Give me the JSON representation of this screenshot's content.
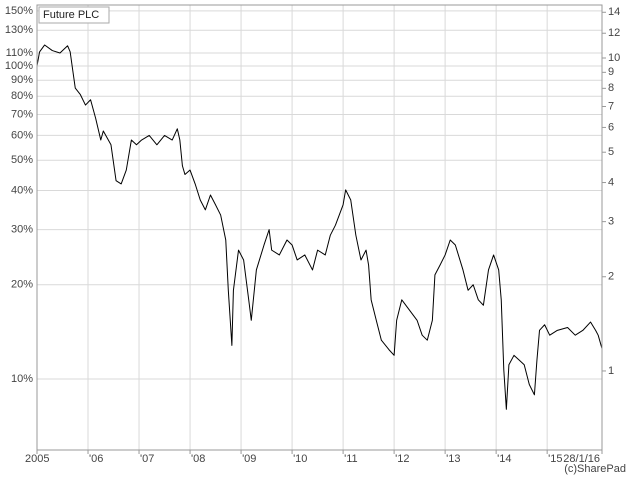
{
  "chart_data": {
    "type": "line",
    "title": "Future PLC",
    "watermark": "(c)SharePad",
    "log_scale": true,
    "grid": true,
    "x": [
      2005.0,
      2005.05,
      2005.15,
      2005.3,
      2005.45,
      2005.6,
      2005.65,
      2005.7,
      2005.75,
      2005.85,
      2005.95,
      2006.05,
      2006.15,
      2006.25,
      2006.3,
      2006.45,
      2006.55,
      2006.65,
      2006.75,
      2006.85,
      2006.95,
      2007.05,
      2007.2,
      2007.35,
      2007.5,
      2007.65,
      2007.75,
      2007.8,
      2007.85,
      2007.9,
      2008.0,
      2008.1,
      2008.2,
      2008.3,
      2008.4,
      2008.5,
      2008.6,
      2008.7,
      2008.75,
      2008.82,
      2008.85,
      2008.95,
      2009.05,
      2009.15,
      2009.2,
      2009.3,
      2009.45,
      2009.55,
      2009.6,
      2009.75,
      2009.9,
      2010.0,
      2010.1,
      2010.25,
      2010.4,
      2010.5,
      2010.65,
      2010.75,
      2010.85,
      2011.0,
      2011.05,
      2011.15,
      2011.25,
      2011.35,
      2011.45,
      2011.5,
      2011.55,
      2011.65,
      2011.75,
      2011.9,
      2012.0,
      2012.05,
      2012.15,
      2012.3,
      2012.45,
      2012.55,
      2012.65,
      2012.75,
      2012.8,
      2012.9,
      2013.0,
      2013.1,
      2013.2,
      2013.35,
      2013.45,
      2013.55,
      2013.65,
      2013.75,
      2013.85,
      2013.95,
      2014.05,
      2014.1,
      2014.15,
      2014.2,
      2014.25,
      2014.35,
      2014.45,
      2014.55,
      2014.65,
      2014.75,
      2014.8,
      2014.85,
      2014.95,
      2015.05,
      2015.2,
      2015.4,
      2015.55,
      2015.7,
      2015.85,
      2015.95,
      2016.0,
      2016.075
    ],
    "series": [
      {
        "name": "Future PLC",
        "color": "#000000",
        "values": [
          100,
          110.9,
          116.7,
          112,
          110,
          116,
          111,
          97,
          85,
          81,
          75,
          78,
          68,
          58,
          62,
          56,
          43,
          42,
          46.5,
          58,
          56,
          58,
          60,
          56,
          60,
          58,
          63,
          58,
          48,
          45,
          46.5,
          42,
          37.3,
          34.7,
          38.7,
          36,
          33.4,
          27.8,
          19.2,
          12.8,
          19.2,
          25.8,
          24,
          17.9,
          15.4,
          22.3,
          26.8,
          30,
          25.8,
          24.9,
          27.8,
          26.8,
          24,
          24.9,
          22.3,
          25.8,
          24.9,
          28.8,
          31,
          36,
          40.2,
          37.3,
          28.8,
          24,
          25.8,
          23.1,
          17.9,
          15.4,
          13.3,
          12.4,
          11.9,
          15.4,
          17.9,
          16.6,
          15.4,
          13.8,
          13.3,
          15.4,
          21.5,
          23.1,
          24.9,
          27.8,
          26.8,
          22.3,
          19.2,
          20,
          17.9,
          17.2,
          22.3,
          24.9,
          22.3,
          17.9,
          10.7,
          8,
          11.1,
          11.9,
          11.5,
          11.1,
          9.6,
          8.9,
          11.5,
          14.3,
          14.9,
          13.8,
          14.3,
          14.6,
          13.8,
          14.3,
          15.2,
          14.3,
          13.8,
          12.5
        ]
      }
    ],
    "xlim": [
      2005,
      2016.075
    ],
    "xticks": [
      {
        "value": 2005,
        "label": "2005"
      },
      {
        "value": 2006,
        "label": "'06"
      },
      {
        "value": 2007,
        "label": "'07"
      },
      {
        "value": 2008,
        "label": "'08"
      },
      {
        "value": 2009,
        "label": "'09"
      },
      {
        "value": 2010,
        "label": "'10"
      },
      {
        "value": 2011,
        "label": "'11"
      },
      {
        "value": 2012,
        "label": "'12"
      },
      {
        "value": 2013,
        "label": "'13"
      },
      {
        "value": 2014,
        "label": "'14"
      },
      {
        "value": 2015,
        "label": "'15"
      },
      {
        "value": 2016.075,
        "label": "28/1/16"
      }
    ],
    "ylim": [
      5.93,
      156.6
    ],
    "yticks": [
      {
        "value": 10,
        "label": "10%"
      },
      {
        "value": 20,
        "label": "20%"
      },
      {
        "value": 30,
        "label": "30%"
      },
      {
        "value": 40,
        "label": "40%"
      },
      {
        "value": 50,
        "label": "50%"
      },
      {
        "value": 60,
        "label": "60%"
      },
      {
        "value": 70,
        "label": "70%"
      },
      {
        "value": 80,
        "label": "80%"
      },
      {
        "value": 90,
        "label": "90%"
      },
      {
        "value": 100,
        "label": "100%"
      },
      {
        "value": 110,
        "label": "110%"
      },
      {
        "value": 130,
        "label": "130%"
      },
      {
        "value": 150,
        "label": "150%"
      }
    ],
    "y2lim": [
      0.559,
      14.77
    ],
    "y2ticks": [
      1,
      2,
      3,
      4,
      5,
      6,
      7,
      8,
      9,
      10,
      12,
      14
    ]
  }
}
